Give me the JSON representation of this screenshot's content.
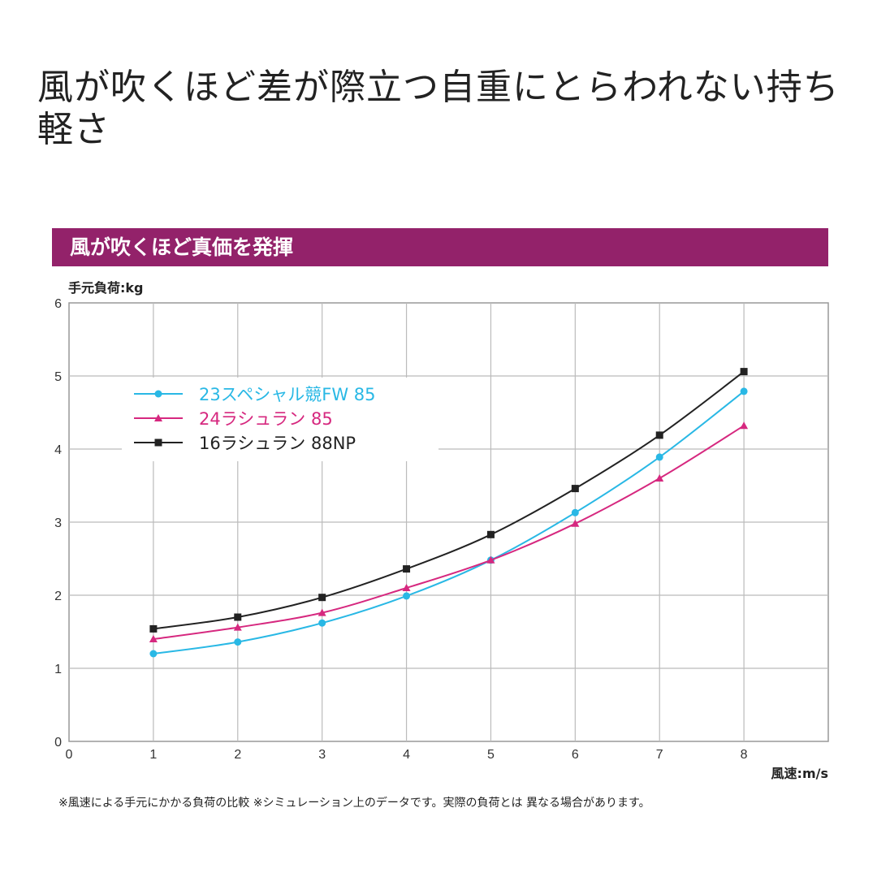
{
  "headline": "風が吹くほど差が際立つ自重にとらわれない持ち軽さ",
  "banner": "風が吹くほど真価を発揮",
  "footnote": "※風速による手元にかかる負荷の比較 ※シミュレーション上のデータです。実際の負荷とは 異なる場合があります。",
  "chart_data": {
    "type": "line",
    "title": "風が吹くほど真価を発揮",
    "xlabel": "風速:m/s",
    "ylabel": "手元負荷:kg",
    "xlim": [
      0,
      9
    ],
    "ylim": [
      0,
      6
    ],
    "xticks": [
      "0",
      "1",
      "2",
      "3",
      "4",
      "5",
      "6",
      "7",
      "8"
    ],
    "yticks": [
      "0",
      "1",
      "2",
      "3",
      "4",
      "5",
      "6"
    ],
    "grid": true,
    "legend_position": "top-left",
    "x": [
      1,
      2,
      3,
      4,
      5,
      6,
      7,
      8
    ],
    "series": [
      {
        "name": "23スペシャル競FW 85",
        "color": "#29b8e5",
        "marker": "circle",
        "values": [
          1.2,
          1.36,
          1.62,
          1.99,
          2.48,
          3.13,
          3.89,
          4.79
        ]
      },
      {
        "name": "24ラシュラン 85",
        "color": "#d6287f",
        "marker": "triangle",
        "values": [
          1.4,
          1.56,
          1.76,
          2.1,
          2.48,
          2.98,
          3.6,
          4.32
        ]
      },
      {
        "name": "16ラシュラン 88NP",
        "color": "#222222",
        "marker": "square",
        "values": [
          1.54,
          1.7,
          1.97,
          2.36,
          2.83,
          3.46,
          4.19,
          5.06
        ]
      }
    ]
  }
}
